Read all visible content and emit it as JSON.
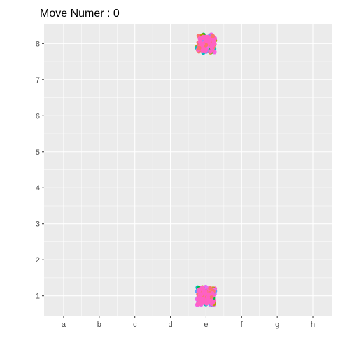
{
  "chart_data": {
    "type": "scatter",
    "title": "Move Numer : 0",
    "xlabel": "",
    "ylabel": "",
    "x_ticks": [
      "a",
      "b",
      "c",
      "d",
      "e",
      "f",
      "g",
      "h"
    ],
    "y_ticks": [
      1,
      2,
      3,
      4,
      5,
      6,
      7,
      8
    ],
    "xlim": [
      0.45,
      8.55
    ],
    "ylim": [
      0.45,
      8.55
    ],
    "grid": true,
    "legend": "none",
    "background": "#ebebeb",
    "grid_color": "#ffffff",
    "clusters": [
      {
        "x": "e",
        "y": 8,
        "spread": 0.25
      },
      {
        "x": "e",
        "y": 1,
        "spread": 0.25
      }
    ],
    "point_colors": [
      "#f8766d",
      "#00ba38",
      "#619cff",
      "#f564e3",
      "#00bfc4",
      "#b79f00",
      "#ff61c3",
      "#e76bf3"
    ]
  }
}
